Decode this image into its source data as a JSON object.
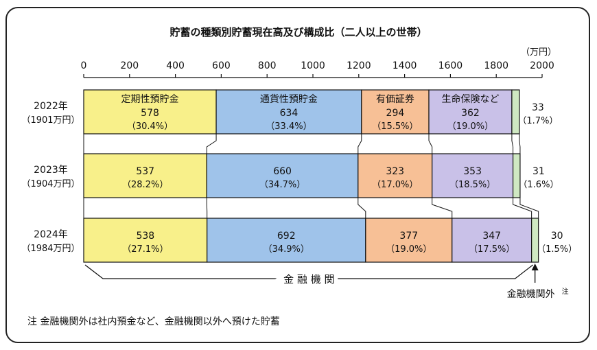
{
  "chart_data": {
    "type": "bar",
    "orientation": "horizontal-stacked",
    "title": "貯蓄の種類別貯蓄現在高及び構成比（二人以上の世帯）",
    "unit": "（万円）",
    "xlim": [
      0,
      2000
    ],
    "xticks": [
      "0",
      "200",
      "400",
      "600",
      "800",
      "1000",
      "1200",
      "1400",
      "1600",
      "1800",
      "2000"
    ],
    "categories": [
      {
        "year": "2022年",
        "total": "（1901万円）"
      },
      {
        "year": "2023年",
        "total": "（1904万円）"
      },
      {
        "year": "2024年",
        "total": "（1984万円）"
      }
    ],
    "series": [
      {
        "name": "定期性預貯金",
        "color": "#f8f08a",
        "values": [
          578,
          537,
          538
        ],
        "pct": [
          "（30.4%）",
          "（28.2%）",
          "（27.1%）"
        ]
      },
      {
        "name": "通貨性預貯金",
        "color": "#9fc3ea",
        "values": [
          634,
          660,
          692
        ],
        "pct": [
          "（33.4%）",
          "（34.7%）",
          "（34.9%）"
        ]
      },
      {
        "name": "有価証券",
        "color": "#f7c096",
        "values": [
          294,
          323,
          377
        ],
        "pct": [
          "（15.5%）",
          "（17.0%）",
          "（19.0%）"
        ]
      },
      {
        "name": "生命保険など",
        "color": "#c9c1e8",
        "values": [
          362,
          353,
          347
        ],
        "pct": [
          "（19.0%）",
          "（18.5%）",
          "（17.5%）"
        ]
      },
      {
        "name": "",
        "color": "#cfe8c2",
        "values": [
          33,
          31,
          30
        ],
        "pct": [
          "（1.7%）",
          "（1.6%）",
          "（1.5%）"
        ]
      }
    ],
    "bracket_label": "金 融 機 関",
    "outside_label": "金融機関外",
    "outside_label_sup": "注",
    "grid": false
  },
  "note": "注 金融機関外は社内預金など、金融機関以外へ預けた貯蓄"
}
